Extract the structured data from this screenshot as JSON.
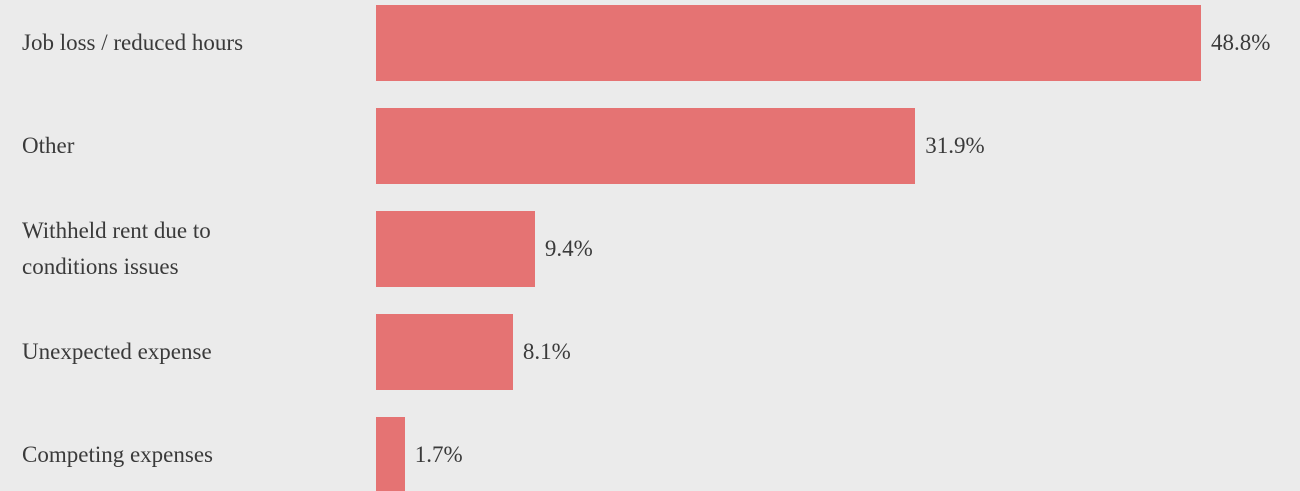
{
  "chart_data": {
    "type": "bar",
    "orientation": "horizontal",
    "categories": [
      "Job loss / reduced hours",
      "Other",
      "Withheld rent due to conditions issues",
      "Unexpected expense",
      "Competing expenses"
    ],
    "values": [
      48.8,
      31.9,
      9.4,
      8.1,
      1.7
    ],
    "value_labels": [
      "48.8%",
      "31.9%",
      "9.4%",
      "8.1%",
      "1.7%"
    ],
    "color": "#e57373"
  }
}
